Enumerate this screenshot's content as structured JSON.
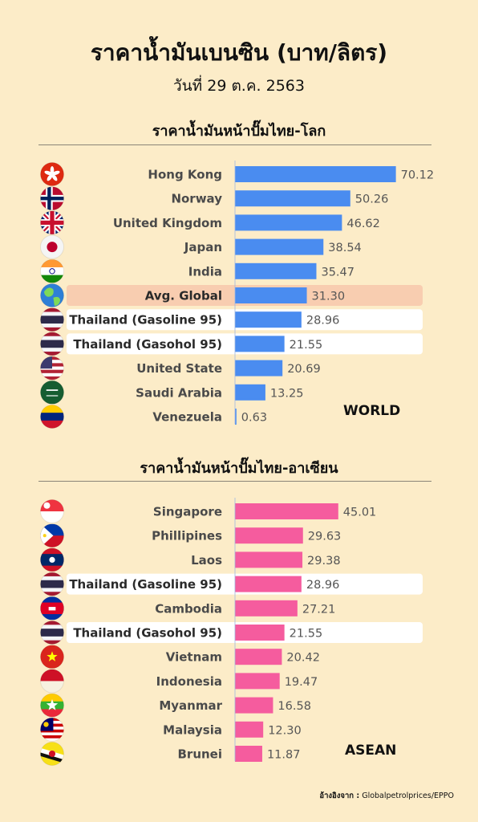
{
  "header": {
    "title": "ราคาน้ำมันเบนซิน (บาท/ลิตร)",
    "subtitle": "วันที่ 29 ต.ค. 2563"
  },
  "world_section": {
    "heading": "ราคาน้ำมันหน้าปั๊มไทย-โลก",
    "region_label": "WORLD"
  },
  "asean_section": {
    "heading": "ราคาน้ำมันหน้าปั๊มไทย-อาเซียน",
    "region_label": "ASEAN"
  },
  "source": {
    "label": "อ้างอิงจาก :",
    "text": "Globalpetrolprices/EPPO"
  },
  "colors": {
    "background": "#fcecc8",
    "world_bar": "#4a8cf0",
    "asean_bar": "#f55c9e",
    "thailand_highlight": "#ffffff",
    "global_avg_highlight": "#f8cdb0",
    "country_label": "#4a4a4a",
    "value_label": "#555555"
  },
  "chart_data": [
    {
      "type": "bar",
      "orientation": "horizontal",
      "categories": [
        "Hong Kong",
        "Norway",
        "United Kingdom",
        "Japan",
        "India",
        "Avg. Global",
        "Thailand (Gasoline 95)",
        "Thailand (Gasohol 95)",
        "United State",
        "Saudi Arabia",
        "Venezuela"
      ],
      "values": [
        70.12,
        50.26,
        46.62,
        38.54,
        35.47,
        31.3,
        28.96,
        21.55,
        20.69,
        13.25,
        0.63
      ],
      "value_labels": [
        "70.12",
        "50.26",
        "46.62",
        "38.54",
        "35.47",
        "31.30",
        "28.96",
        "21.55",
        "20.69",
        "13.25",
        "0.63"
      ],
      "highlight": [
        "none",
        "none",
        "none",
        "none",
        "none",
        "avg",
        "thai",
        "thai",
        "none",
        "none",
        "none"
      ],
      "flag_icons": [
        "hong-kong-flag-icon",
        "norway-flag-icon",
        "united-kingdom-flag-icon",
        "japan-flag-icon",
        "india-flag-icon",
        "globe-icon",
        "thailand-flag-icon",
        "thailand-flag-icon",
        "united-states-flag-icon",
        "saudi-arabia-flag-icon",
        "venezuela-flag-icon"
      ],
      "color": "#4a8cf0",
      "xlim": [
        0,
        72
      ]
    },
    {
      "type": "bar",
      "orientation": "horizontal",
      "categories": [
        "Singapore",
        "Phillipines",
        "Laos",
        "Thailand (Gasoline 95)",
        "Cambodia",
        "Thailand (Gasohol 95)",
        "Vietnam",
        "Indonesia",
        "Myanmar",
        "Malaysia",
        "Brunei"
      ],
      "values": [
        45.01,
        29.63,
        29.38,
        28.96,
        27.21,
        21.55,
        20.42,
        19.47,
        16.58,
        12.3,
        11.87
      ],
      "value_labels": [
        "45.01",
        "29.63",
        "29.38",
        "28.96",
        "27.21",
        "21.55",
        "20.42",
        "19.47",
        "16.58",
        "12.30",
        "11.87"
      ],
      "highlight": [
        "none",
        "none",
        "none",
        "thai",
        "none",
        "thai",
        "none",
        "none",
        "none",
        "none",
        "none"
      ],
      "flag_icons": [
        "singapore-flag-icon",
        "philippines-flag-icon",
        "laos-flag-icon",
        "thailand-flag-icon",
        "cambodia-flag-icon",
        "thailand-flag-icon",
        "vietnam-flag-icon",
        "indonesia-flag-icon",
        "myanmar-flag-icon",
        "malaysia-flag-icon",
        "brunei-flag-icon"
      ],
      "color": "#f55c9e",
      "xlim": [
        0,
        72
      ]
    }
  ]
}
